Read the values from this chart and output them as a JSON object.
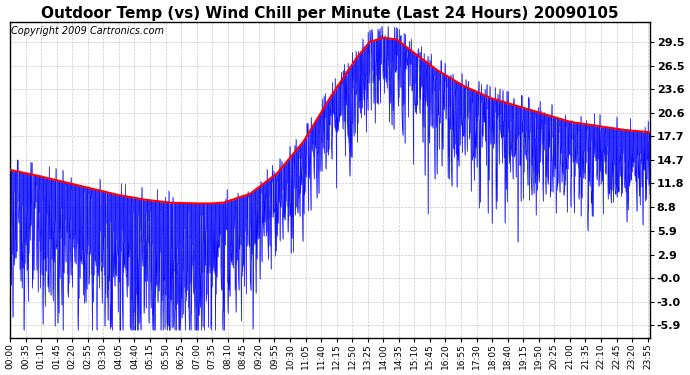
{
  "title": "Outdoor Temp (vs) Wind Chill per Minute (Last 24 Hours) 20090105",
  "copyright": "Copyright 2009 Cartronics.com",
  "yticks": [
    29.5,
    26.5,
    23.6,
    20.6,
    17.7,
    14.7,
    11.8,
    8.8,
    5.9,
    2.9,
    -0.0,
    -3.0,
    -5.9
  ],
  "ymin": -7.5,
  "ymax": 32.0,
  "background_color": "#ffffff",
  "grid_color": "#bbbbbb",
  "blue_color": "#0000ff",
  "red_color": "#ff0000",
  "title_fontsize": 11,
  "tick_label_fontsize": 8,
  "copyright_fontsize": 7,
  "n_points": 1440,
  "red_keypoints_hours": [
    0,
    1,
    2,
    3,
    4,
    5,
    6,
    7,
    7.5,
    8,
    9,
    10,
    11,
    12,
    13,
    13.5,
    14,
    14.5,
    15,
    16,
    17,
    18,
    19,
    20,
    21,
    22,
    23,
    24
  ],
  "red_keypoints_vals": [
    13.5,
    12.8,
    12.0,
    11.2,
    10.4,
    9.8,
    9.4,
    9.3,
    9.3,
    9.4,
    10.5,
    13.0,
    17.0,
    22.5,
    27.5,
    29.5,
    30.0,
    29.8,
    28.5,
    26.0,
    24.0,
    22.5,
    21.5,
    20.5,
    19.5,
    19.0,
    18.5,
    18.2
  ],
  "wind_offset_keypoints_hours": [
    0,
    4,
    7,
    8,
    10,
    13.5,
    16,
    18,
    24
  ],
  "wind_offset_keypoints_vals": [
    8.0,
    9.0,
    10.0,
    8.0,
    5.0,
    3.0,
    4.0,
    5.0,
    5.5
  ],
  "xtick_interval_minutes": 35
}
